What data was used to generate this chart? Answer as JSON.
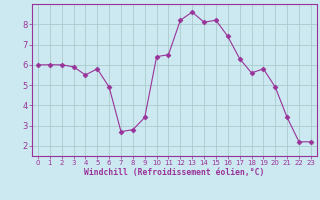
{
  "x": [
    0,
    1,
    2,
    3,
    4,
    5,
    6,
    7,
    8,
    9,
    10,
    11,
    12,
    13,
    14,
    15,
    16,
    17,
    18,
    19,
    20,
    21,
    22,
    23
  ],
  "y": [
    6.0,
    6.0,
    6.0,
    5.9,
    5.5,
    5.8,
    4.9,
    2.7,
    2.8,
    3.4,
    6.4,
    6.5,
    8.2,
    8.6,
    8.1,
    8.2,
    7.4,
    6.3,
    5.6,
    5.8,
    4.9,
    3.4,
    2.2,
    2.2
  ],
  "line_color": "#993399",
  "marker": "D",
  "marker_size": 2.5,
  "bg_color": "#cce8f0",
  "grid_color": "#aacccc",
  "xlabel": "Windchill (Refroidissement éolien,°C)",
  "xlim": [
    -0.5,
    23.5
  ],
  "ylim": [
    1.5,
    9.0
  ],
  "yticks": [
    2,
    3,
    4,
    5,
    6,
    7,
    8
  ],
  "xticks": [
    0,
    1,
    2,
    3,
    4,
    5,
    6,
    7,
    8,
    9,
    10,
    11,
    12,
    13,
    14,
    15,
    16,
    17,
    18,
    19,
    20,
    21,
    22,
    23
  ],
  "tick_color": "#993399",
  "label_color": "#993399",
  "spine_color": "#993399"
}
